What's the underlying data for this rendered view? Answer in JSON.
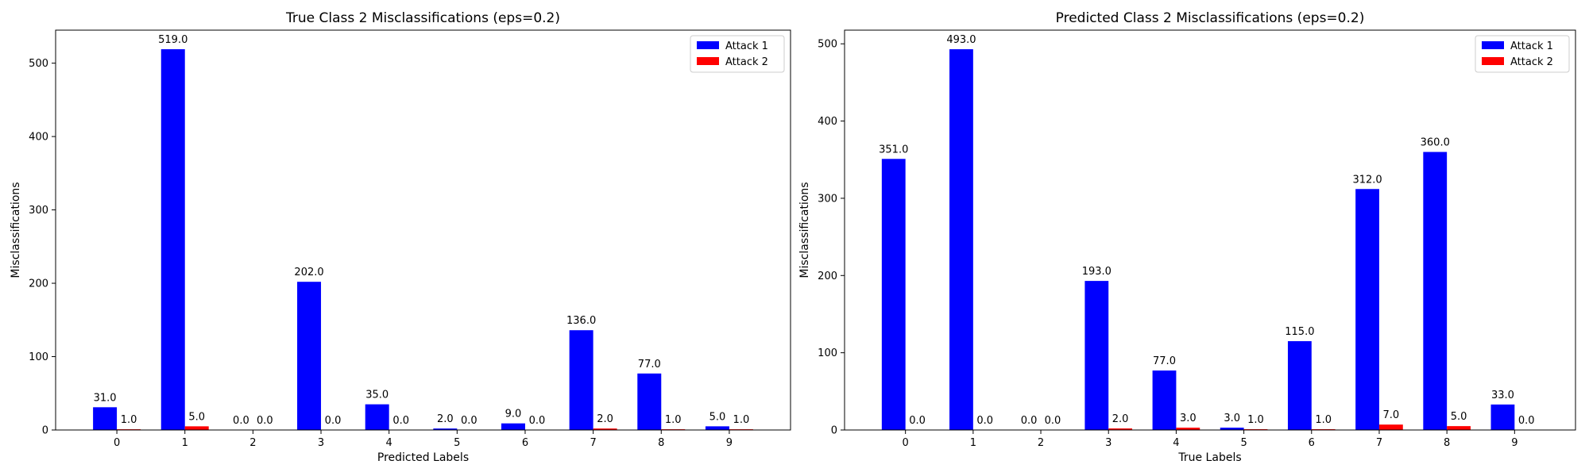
{
  "chart_data": [
    {
      "type": "bar",
      "title": "True Class 2 Misclassifications (eps=0.2)",
      "xlabel": "Predicted Labels",
      "ylabel": "Misclassifications",
      "categories": [
        "0",
        "1",
        "2",
        "3",
        "4",
        "5",
        "6",
        "7",
        "8",
        "9"
      ],
      "series": [
        {
          "name": "Attack 1",
          "color": "#0000ff",
          "values": [
            31.0,
            519.0,
            0.0,
            202.0,
            35.0,
            2.0,
            9.0,
            136.0,
            77.0,
            5.0
          ],
          "labels": [
            "31.0",
            "519.0",
            "0.0",
            "202.0",
            "35.0",
            "2.0",
            "9.0",
            "136.0",
            "77.0",
            "5.0"
          ]
        },
        {
          "name": "Attack 2",
          "color": "#ff0000",
          "values": [
            1.0,
            5.0,
            0.0,
            0.0,
            0.0,
            0.0,
            0.0,
            2.0,
            1.0,
            1.0
          ],
          "labels": [
            "1.0",
            "5.0",
            "0.0",
            "0.0",
            "0.0",
            "0.0",
            "0.0",
            "2.0",
            "1.0",
            "1.0"
          ]
        }
      ],
      "ylim": [
        0,
        545
      ],
      "yticks": [
        0,
        100,
        200,
        300,
        400,
        500
      ],
      "ytick_labels": [
        "0",
        "100",
        "200",
        "300",
        "400",
        "500"
      ],
      "legend": "top-right",
      "grid": false
    },
    {
      "type": "bar",
      "title": "Predicted Class 2 Misclassifications (eps=0.2)",
      "xlabel": "True Labels",
      "ylabel": "Misclassifications",
      "categories": [
        "0",
        "1",
        "2",
        "3",
        "4",
        "5",
        "6",
        "7",
        "8",
        "9"
      ],
      "series": [
        {
          "name": "Attack 1",
          "color": "#0000ff",
          "values": [
            351.0,
            493.0,
            0.0,
            193.0,
            77.0,
            3.0,
            115.0,
            312.0,
            360.0,
            33.0
          ],
          "labels": [
            "351.0",
            "493.0",
            "0.0",
            "193.0",
            "77.0",
            "3.0",
            "115.0",
            "312.0",
            "360.0",
            "33.0"
          ]
        },
        {
          "name": "Attack 2",
          "color": "#ff0000",
          "values": [
            0.0,
            0.0,
            0.0,
            2.0,
            3.0,
            1.0,
            1.0,
            7.0,
            5.0,
            0.0
          ],
          "labels": [
            "0.0",
            "0.0",
            "0.0",
            "2.0",
            "3.0",
            "1.0",
            "1.0",
            "7.0",
            "5.0",
            "0.0"
          ]
        }
      ],
      "ylim": [
        0,
        517.7
      ],
      "yticks": [
        0,
        100,
        200,
        300,
        400,
        500
      ],
      "ytick_labels": [
        "0",
        "100",
        "200",
        "300",
        "400",
        "500"
      ],
      "legend": "top-right",
      "grid": false
    }
  ]
}
